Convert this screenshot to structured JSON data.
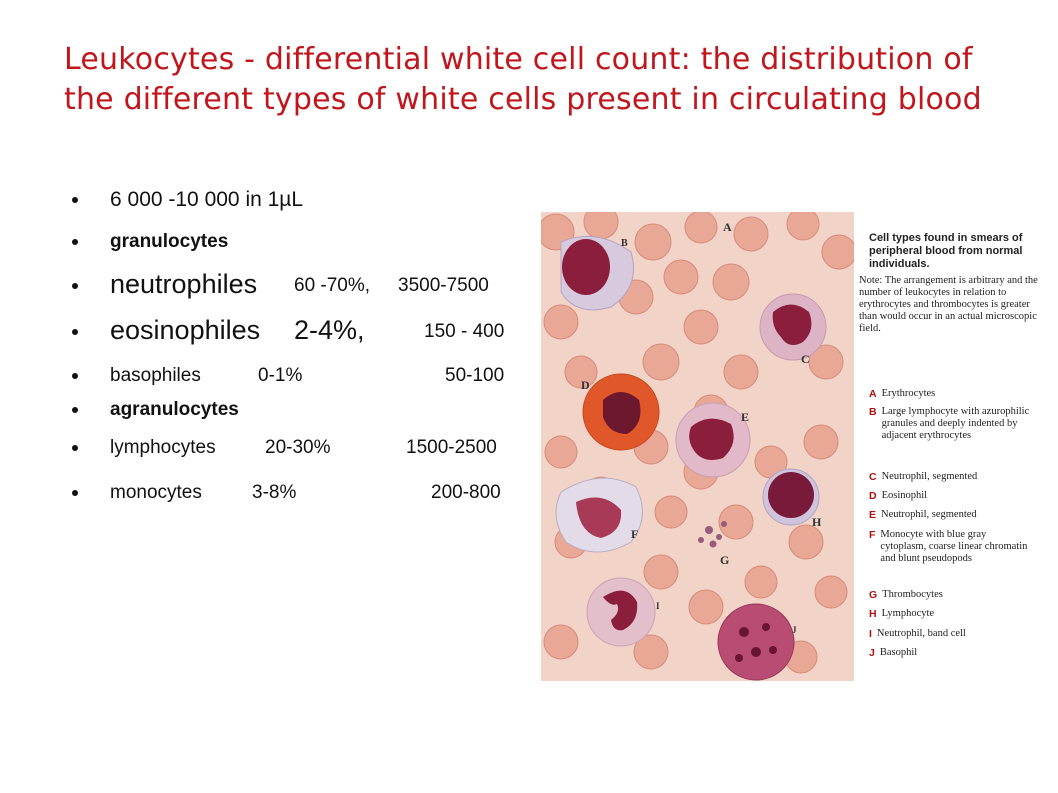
{
  "title": "Leukocytes - differential white cell count: the distribution of the different types of white cells present in circulating blood",
  "bullets": [
    {
      "label": "6 000 -10 000 in 1µL"
    },
    {
      "label": "granulocytes"
    },
    {
      "label": "neutrophiles",
      "percent": "60 -70%,",
      "count": "3500-7500"
    },
    {
      "label": "eosinophiles",
      "percent": "2-4%,",
      "count": "150 - 400"
    },
    {
      "label": "basophiles",
      "percent": "0-1%",
      "count": "50-100"
    },
    {
      "label": "agranulocytes"
    },
    {
      "label": "lymphocytes",
      "percent": "20-30%",
      "count": "1500-2500"
    },
    {
      "label": "monocytes",
      "percent": "3-8%",
      "count": "200-800"
    }
  ],
  "figure": {
    "cell_letters": [
      "A",
      "B",
      "C",
      "D",
      "E",
      "F",
      "G",
      "H",
      "I",
      "J"
    ],
    "legend": {
      "heading": "Cell types found in smears of peripheral blood from normal individuals.",
      "note": "Note: The arrangement is arbitrary and the number of leukocytes in relation to erythrocytes and thrombocytes is greater than would occur in an actual microscopic field.",
      "items": [
        {
          "letter": "A",
          "text": "Erythrocytes"
        },
        {
          "letter": "B",
          "text": "Large lymphocyte with azurophilic granules and deeply indented by adjacent erythrocytes"
        },
        {
          "letter": "C",
          "text": "Neutrophil, segmented"
        },
        {
          "letter": "D",
          "text": "Eosinophil"
        },
        {
          "letter": "E",
          "text": "Neutrophil, segmented"
        },
        {
          "letter": "F",
          "text": "Monocyte with blue gray cytoplasm, coarse linear chromatin and blunt pseudopods"
        },
        {
          "letter": "G",
          "text": "Thrombocytes"
        },
        {
          "letter": "H",
          "text": "Lymphocyte"
        },
        {
          "letter": "I",
          "text": "Neutrophil, band cell"
        },
        {
          "letter": "J",
          "text": "Basophil"
        }
      ]
    }
  },
  "colors": {
    "title": "#c0161c",
    "erythrocyte": "#e9a796",
    "nucleus": "#8a1e3c",
    "eosinophil_granules": "#e0582a",
    "legend_letter": "#b01010"
  }
}
